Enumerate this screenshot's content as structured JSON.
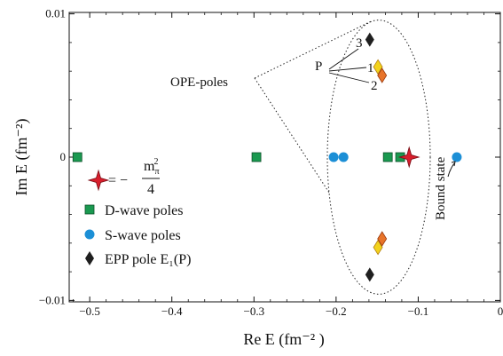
{
  "chart_data": {
    "type": "scatter",
    "xlabel": "Re E (fm⁻² )",
    "ylabel": "Im E (fm⁻²)",
    "xlim": [
      -0.525,
      0.0
    ],
    "ylim": [
      0.0101,
      -0.0101
    ],
    "y_inverted": true,
    "x_ticks": [
      {
        "value": -0.5,
        "label": "−0.5"
      },
      {
        "value": -0.4,
        "label": "−0.4"
      },
      {
        "value": -0.3,
        "label": "−0.3"
      },
      {
        "value": -0.2,
        "label": "−0.2"
      },
      {
        "value": -0.1,
        "label": "−0.1"
      },
      {
        "value": 0.0,
        "label": "0"
      }
    ],
    "y_ticks": [
      {
        "value": -0.01,
        "label": "−0.01"
      },
      {
        "value": 0.0,
        "label": "0"
      },
      {
        "value": 0.01,
        "label": "0.01"
      }
    ],
    "series": [
      {
        "name": "D-wave poles",
        "marker": "square",
        "color": "#1a9950",
        "x": [
          -0.515,
          -0.297,
          -0.137,
          -0.122
        ],
        "y": [
          0.0,
          0.0,
          0.0,
          0.0
        ]
      },
      {
        "name": "S-wave poles",
        "marker": "circle",
        "color": "#1c8fd6",
        "x": [
          -0.203,
          -0.191,
          -0.053
        ],
        "y": [
          0.0,
          0.0,
          0.0
        ]
      },
      {
        "name": "EPP pole E₁(P)",
        "marker": "diamond",
        "color": "#1f1f1f",
        "x": [
          -0.159,
          -0.159
        ],
        "y": [
          -0.0082,
          0.0082
        ]
      },
      {
        "name": "",
        "marker": "diamond",
        "color": "#f2d21c",
        "edge": "#b07a10",
        "x": [
          -0.149,
          -0.149
        ],
        "y": [
          -0.0063,
          0.0063
        ]
      },
      {
        "name": "",
        "marker": "diamond",
        "color": "#e8742a",
        "edge": "#9a3b10",
        "x": [
          -0.144,
          -0.144
        ],
        "y": [
          -0.0057,
          0.0057
        ]
      },
      {
        "name": "",
        "marker": "star",
        "color": "#d81e2c",
        "x": [
          -0.111
        ],
        "y": [
          0.0
        ]
      }
    ],
    "legend": {
      "placement": "lower-left",
      "star_label_prefix": "= −",
      "star_label_num": "m",
      "star_label_num_sub": "π",
      "star_label_num_sup": "2",
      "star_label_den": "4",
      "items": [
        {
          "marker": "square",
          "label": "D-wave poles"
        },
        {
          "marker": "circle",
          "label": "S-wave poles"
        },
        {
          "marker": "diamond",
          "label": "EPP pole E₁(P)"
        }
      ]
    },
    "annotations": {
      "ope_poles": "OPE-poles",
      "p_label": "P",
      "labels_123": [
        "3",
        "1",
        "2"
      ],
      "bound_state": "Bound state"
    },
    "colors": {
      "axis": "#111111",
      "ellipse": "#222222"
    }
  }
}
